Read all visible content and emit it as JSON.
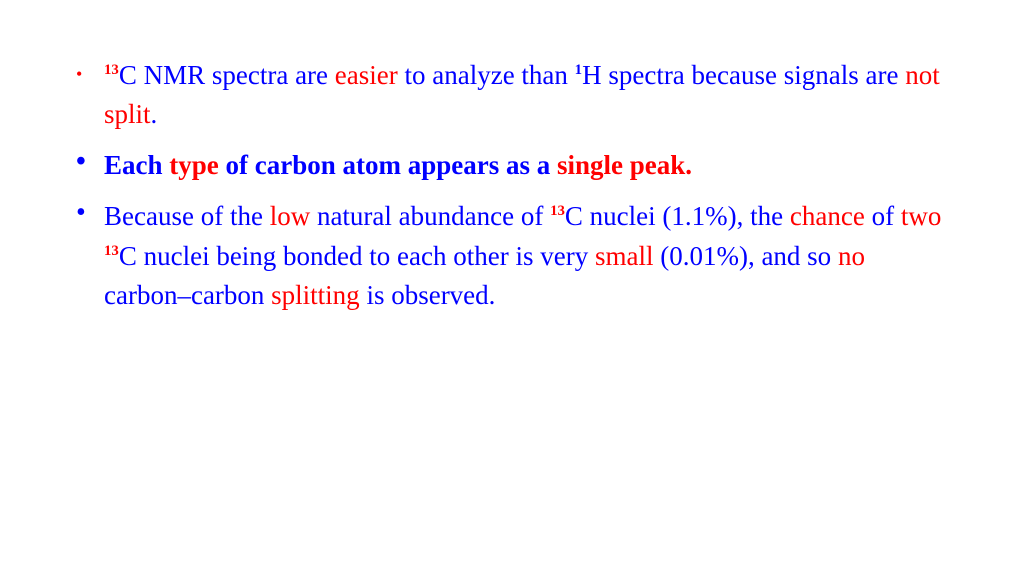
{
  "colors": {
    "blue": "#0000ff",
    "red": "#ff0000",
    "bg": "#ffffff"
  },
  "font": {
    "family": "Times New Roman",
    "size_pt": 27
  },
  "bullets": [
    {
      "bold": false,
      "bullet_color": "#ff0000",
      "segments": [
        {
          "sup": "13",
          "sup_color": "#ff0000"
        },
        {
          "t": "C NMR spectra are ",
          "c": "blue"
        },
        {
          "t": "easier",
          "c": "red"
        },
        {
          "t": " to analyze than ",
          "c": "blue"
        },
        {
          "sup": "1",
          "sup_color": "#0000ff"
        },
        {
          "t": "H spectra because signals are ",
          "c": "blue"
        },
        {
          "t": "not split",
          "c": "red"
        },
        {
          "t": ".",
          "c": "blue"
        }
      ]
    },
    {
      "bold": true,
      "bullet_color": "#0000ff",
      "segments": [
        {
          "t": "Each ",
          "c": "blue"
        },
        {
          "t": "type",
          "c": "red"
        },
        {
          "t": " of carbon atom appears as a ",
          "c": "blue"
        },
        {
          "t": "single peak.",
          "c": "red"
        }
      ]
    },
    {
      "bold": false,
      "bullet_color": "#0000ff",
      "segments": [
        {
          "t": "Because of the ",
          "c": "blue"
        },
        {
          "t": "low",
          "c": "red"
        },
        {
          "t": " natural abundance of ",
          "c": "blue"
        },
        {
          "sup": "13",
          "sup_color": "#ff0000"
        },
        {
          "t": "C nuclei (1.1%), the ",
          "c": "blue"
        },
        {
          "t": "chance",
          "c": "red"
        },
        {
          "t": " of ",
          "c": "blue"
        },
        {
          "t": "two",
          "c": "red"
        },
        {
          "t": " ",
          "c": "blue"
        },
        {
          "sup": "13",
          "sup_color": "#ff0000"
        },
        {
          "t": "C nuclei being bonded to each other is very ",
          "c": "blue"
        },
        {
          "t": "small",
          "c": "red"
        },
        {
          "t": " (0.01%), and so ",
          "c": "blue"
        },
        {
          "t": "no",
          "c": "red"
        },
        {
          "t": " carbon–carbon ",
          "c": "blue"
        },
        {
          "t": "splitting",
          "c": "red"
        },
        {
          "t": " is observed.",
          "c": "blue"
        }
      ]
    }
  ]
}
